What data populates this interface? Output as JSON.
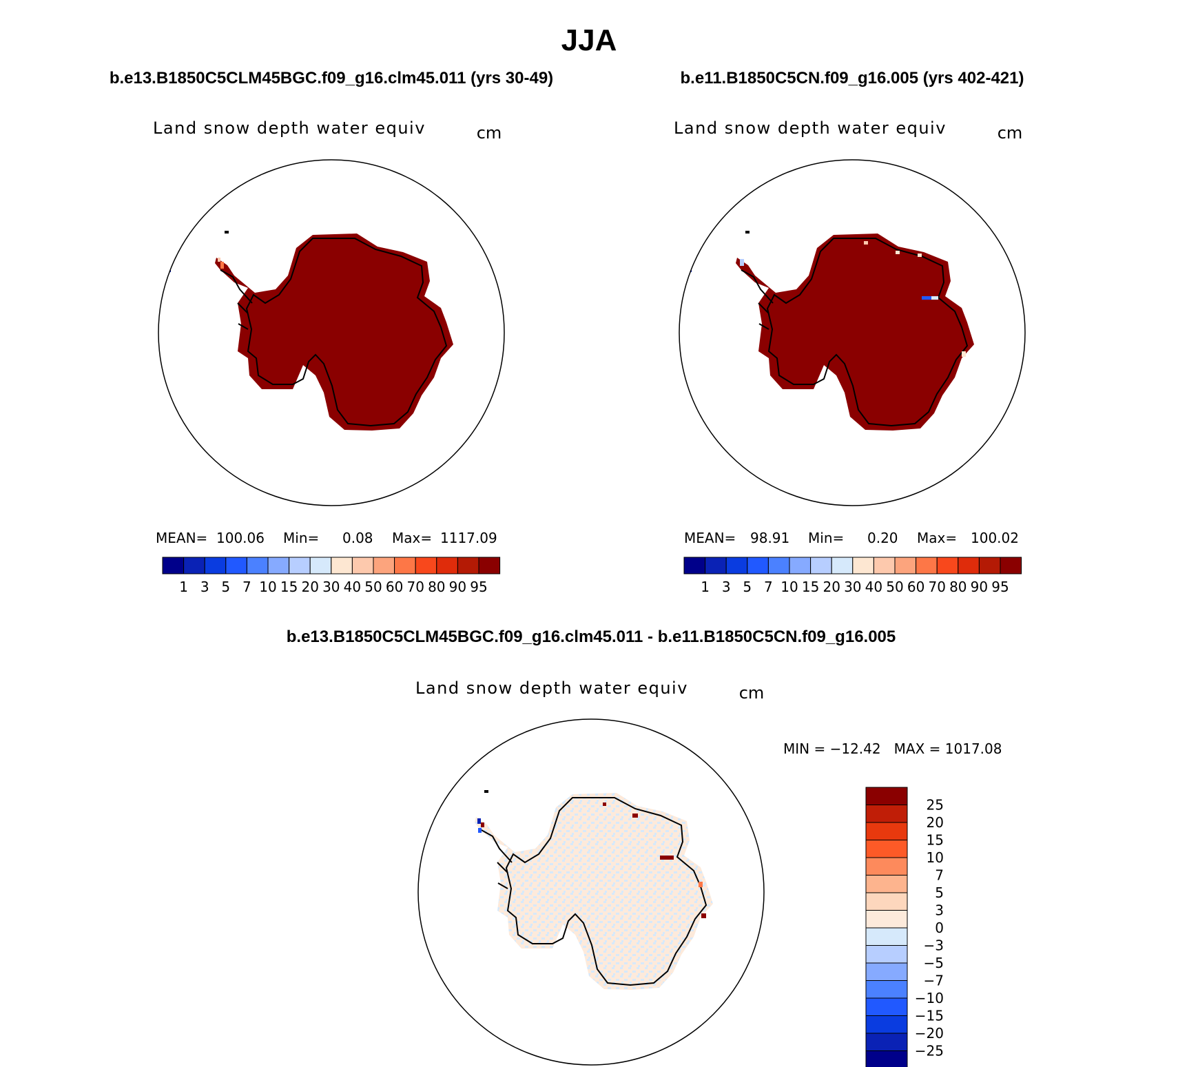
{
  "figure": {
    "title": "JJA"
  },
  "panels": [
    {
      "id": "left",
      "case_title": "b.e13.B1850C5CLM45BGC.f09_g16.clm45.011 (yrs 30-49)",
      "variable": "Land snow depth water equiv",
      "units": "cm",
      "stats": {
        "mean_label": "MEAN=",
        "mean": "100.06",
        "min_label": "Min=",
        "min": "0.08",
        "max_label": "Max=",
        "max": "1117.09"
      }
    },
    {
      "id": "right",
      "case_title": "b.e11.B1850C5CN.f09_g16.005 (yrs 402-421)",
      "variable": "Land snow depth water equiv",
      "units": "cm",
      "stats": {
        "mean_label": "MEAN=",
        "mean": "98.91",
        "min_label": "Min=",
        "min": "0.20",
        "max_label": "Max=",
        "max": "100.02"
      }
    },
    {
      "id": "diff",
      "case_title": "b.e13.B1850C5CLM45BGC.f09_g16.clm45.011 - b.e11.B1850C5CN.f09_g16.005",
      "variable": "Land snow depth water equiv",
      "units": "cm",
      "stats": {
        "text": "MIN = −12.42   MAX = 1017.08"
      }
    }
  ],
  "chart_data": [
    {
      "type": "heatmap",
      "projection": "polar-stereographic-south",
      "title": "b.e13.B1850C5CLM45BGC.f09_g16.clm45.011 (yrs 30-49)",
      "variable": "Land snow depth water equiv",
      "units": "cm",
      "colorbar": {
        "orientation": "horizontal",
        "levels": [
          "1",
          "3",
          "5",
          "7",
          "10",
          "15",
          "20",
          "30",
          "40",
          "50",
          "60",
          "70",
          "80",
          "90",
          "95"
        ],
        "colors": [
          "#00008a",
          "#0a22b5",
          "#0a3ce0",
          "#2159ff",
          "#4b81ff",
          "#86aaff",
          "#b7ceff",
          "#d6e9fb",
          "#fde7d2",
          "#fdc9ad",
          "#fca47d",
          "#fd7747",
          "#f8481c",
          "#df2c0b",
          "#b41a05",
          "#8a0000"
        ]
      },
      "dominant_value_range": "> 95",
      "mean": 100.06,
      "min": 0.08,
      "max": 1117.09
    },
    {
      "type": "heatmap",
      "projection": "polar-stereographic-south",
      "title": "b.e11.B1850C5CN.f09_g16.005 (yrs 402-421)",
      "variable": "Land snow depth water equiv",
      "units": "cm",
      "colorbar": {
        "orientation": "horizontal",
        "levels": [
          "1",
          "3",
          "5",
          "7",
          "10",
          "15",
          "20",
          "30",
          "40",
          "50",
          "60",
          "70",
          "80",
          "90",
          "95"
        ],
        "colors": [
          "#00008a",
          "#0a22b5",
          "#0a3ce0",
          "#2159ff",
          "#4b81ff",
          "#86aaff",
          "#b7ceff",
          "#d6e9fb",
          "#fde7d2",
          "#fdc9ad",
          "#fca47d",
          "#fd7747",
          "#f8481c",
          "#df2c0b",
          "#b41a05",
          "#8a0000"
        ]
      },
      "dominant_value_range": "> 95",
      "mean": 98.91,
      "min": 0.2,
      "max": 100.02
    },
    {
      "type": "heatmap",
      "projection": "polar-stereographic-south",
      "title": "b.e13.B1850C5CLM45BGC.f09_g16.clm45.011 - b.e11.B1850C5CN.f09_g16.005",
      "variable": "Land snow depth water equiv",
      "units": "cm",
      "colorbar": {
        "orientation": "vertical",
        "levels": [
          "25",
          "20",
          "15",
          "10",
          "7",
          "5",
          "3",
          "0",
          "−3",
          "−5",
          "−7",
          "−10",
          "−15",
          "−20",
          "−25"
        ],
        "colors": [
          "#8a0000",
          "#c01e07",
          "#e8390e",
          "#fd5a27",
          "#fd8a5c",
          "#fdb48e",
          "#fdd7bd",
          "#fdeadb",
          "#d6e9fb",
          "#b7ceff",
          "#86aaff",
          "#4b81ff",
          "#2159ff",
          "#0a3ce0",
          "#0a22b5",
          "#00008a"
        ]
      },
      "dominant_value_range": "0 to 3 and -3 to 0",
      "min": -12.42,
      "max": 1017.08
    }
  ]
}
